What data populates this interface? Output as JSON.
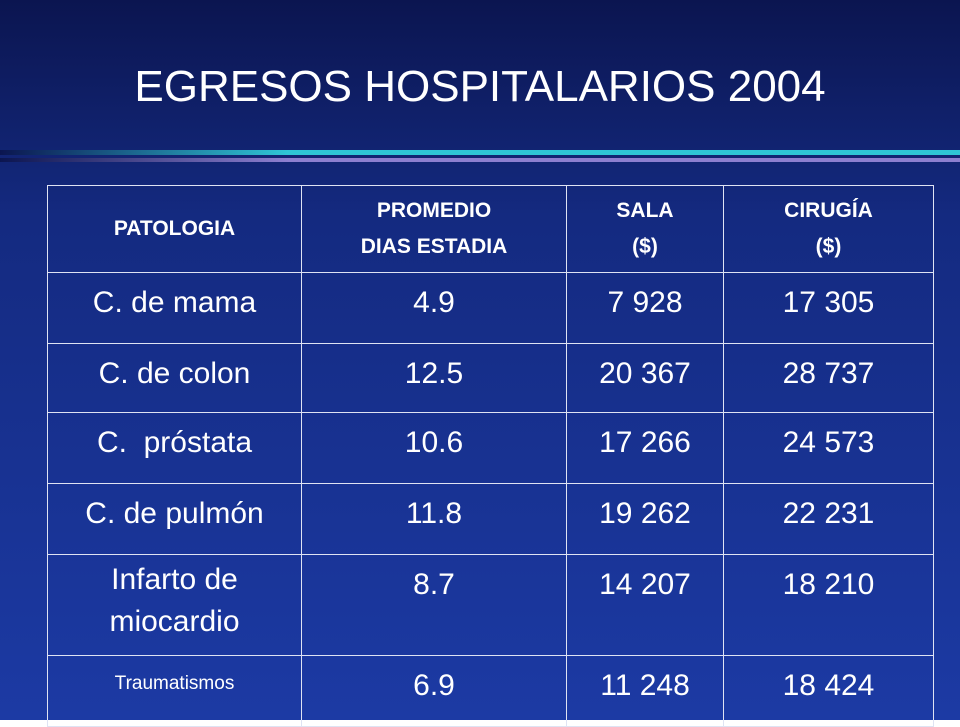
{
  "title": "EGRESOS HOSPITALARIOS 2004",
  "table": {
    "header": [
      [
        "PATOLOGIA"
      ],
      [
        "PROMEDIO",
        "DIAS ESTADIA"
      ],
      [
        "SALA",
        "($)"
      ],
      [
        "CIRUGÍA",
        "($)"
      ]
    ],
    "rows": [
      [
        "C. de mama",
        "4.9",
        "7 928",
        "17 305"
      ],
      [
        "C. de colon",
        "12.5",
        "20 367",
        "28 737"
      ],
      [
        "C.  próstata",
        "10.6",
        "17 266",
        "24 573"
      ],
      [
        "C. de pulmón",
        "11.8",
        "19 262",
        "22 231"
      ],
      [
        "Infarto de miocardio",
        "8.7",
        "14 207",
        "18 210"
      ],
      [
        "Traumatismos",
        "6.9",
        "11 248",
        "18 424"
      ]
    ]
  }
}
